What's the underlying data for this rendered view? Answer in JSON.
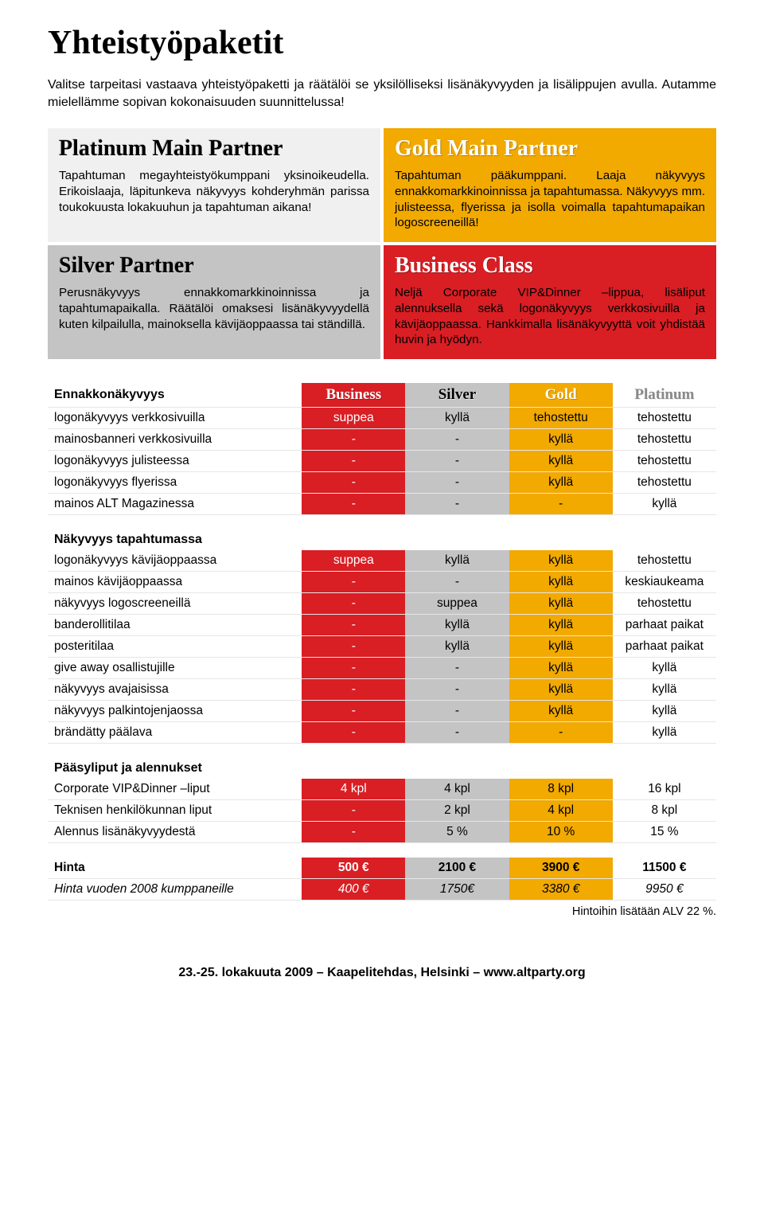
{
  "page": {
    "title": "Yhteistyöpaketit",
    "intro": "Valitse tarpeitasi vastaava yhteistyöpaketti ja räätälöi se yksilölliseksi lisänäkyvyyden ja lisälippujen avulla. Autamme mielellämme sopivan kokonaisuuden suunnittelussa!",
    "footer": "23.-25. lokakuuta 2009 – Kaapelitehdas, Helsinki – www.altparty.org"
  },
  "cards": {
    "platinum": {
      "title": "Platinum Main Partner",
      "body": "Tapahtuman megayhteistyökumppani yksinoikeudella. Erikoislaaja, läpitunkeva näkyvyys kohderyhmän parissa toukokuusta lokakuuhun ja tapahtuman aikana!",
      "bg": "#f0f0f0"
    },
    "gold": {
      "title": "Gold Main Partner",
      "body": "Tapahtuman pääkumppani. Laaja näkyvyys ennakkomarkkinoinnissa ja tapahtumassa. Näkyvyys mm. julisteessa, flyerissa ja isolla voimalla tapahtumapaikan logoscreeneillä!",
      "bg": "#f2a900"
    },
    "silver": {
      "title": "Silver Partner",
      "body": "Perusnäkyvyys ennakkomarkkinoinnissa ja tapahtumapaikalla. Räätälöi omaksesi lisänäkyvyydellä kuten kilpailulla, mainoksella kävijäoppaassa tai ständillä.",
      "bg": "#c4c4c4"
    },
    "business": {
      "title": "Business Class",
      "body": "Neljä Corporate VIP&Dinner –lippua, lisäliput alennuksella sekä logonäkyvyys verkkosivuilla ja kävijäoppaassa. Hankkimalla lisänäkyvyyttä voit yhdistää huvin ja hyödyn.",
      "bg": "#d91e24"
    }
  },
  "colors": {
    "business": "#d91e24",
    "silver": "#c4c4c4",
    "gold": "#f2a900",
    "platinum": "#ffffff"
  },
  "tiers": {
    "biz": "Business",
    "sil": "Silver",
    "gold": "Gold",
    "plat": "Platinum"
  },
  "sections": [
    {
      "heading": "Ennakkonäkyvyys",
      "showTierHeaders": true,
      "rows": [
        {
          "label": "logonäkyvyys verkkosivuilla",
          "biz": "suppea",
          "sil": "kyllä",
          "gold": "tehostettu",
          "plat": "tehostettu"
        },
        {
          "label": "mainosbanneri verkkosivuilla",
          "biz": "-",
          "sil": "-",
          "gold": "kyllä",
          "plat": "tehostettu"
        },
        {
          "label": "logonäkyvyys julisteessa",
          "biz": "-",
          "sil": "-",
          "gold": "kyllä",
          "plat": "tehostettu"
        },
        {
          "label": "logonäkyvyys flyerissa",
          "biz": "-",
          "sil": "-",
          "gold": "kyllä",
          "plat": "tehostettu"
        },
        {
          "label": "mainos ALT Magazinessa",
          "biz": "-",
          "sil": "-",
          "gold": "-",
          "plat": "kyllä"
        }
      ]
    },
    {
      "heading": "Näkyvyys tapahtumassa",
      "showTierHeaders": false,
      "rows": [
        {
          "label": "logonäkyvyys kävijäoppaassa",
          "biz": "suppea",
          "sil": "kyllä",
          "gold": "kyllä",
          "plat": "tehostettu"
        },
        {
          "label": "mainos kävijäoppaassa",
          "biz": "-",
          "sil": "-",
          "gold": "kyllä",
          "plat": "keskiaukeama"
        },
        {
          "label": "näkyvyys logoscreeneillä",
          "biz": "-",
          "sil": "suppea",
          "gold": "kyllä",
          "plat": "tehostettu"
        },
        {
          "label": "banderollitilaa",
          "biz": "-",
          "sil": "kyllä",
          "gold": "kyllä",
          "plat": "parhaat paikat"
        },
        {
          "label": "posteritilaa",
          "biz": "-",
          "sil": "kyllä",
          "gold": "kyllä",
          "plat": "parhaat paikat"
        },
        {
          "label": "give away osallistujille",
          "biz": "-",
          "sil": "-",
          "gold": "kyllä",
          "plat": "kyllä"
        },
        {
          "label": "näkyvyys avajaisissa",
          "biz": "-",
          "sil": "-",
          "gold": "kyllä",
          "plat": "kyllä"
        },
        {
          "label": "näkyvyys palkintojenjaossa",
          "biz": "-",
          "sil": "-",
          "gold": "kyllä",
          "plat": "kyllä"
        },
        {
          "label": "brändätty päälava",
          "biz": "-",
          "sil": "-",
          "gold": "-",
          "plat": "kyllä"
        }
      ]
    },
    {
      "heading": "Pääsyliput ja alennukset",
      "showTierHeaders": false,
      "rows": [
        {
          "label": "Corporate VIP&Dinner –liput",
          "biz": "4 kpl",
          "sil": "4 kpl",
          "gold": "8 kpl",
          "plat": "16 kpl"
        },
        {
          "label": "Teknisen henkilökunnan liput",
          "biz": "-",
          "sil": "2 kpl",
          "gold": "4 kpl",
          "plat": "8 kpl"
        },
        {
          "label": "Alennus lisänäkyvyydestä",
          "biz": "-",
          "sil": "5 %",
          "gold": "10 %",
          "plat": "15 %"
        }
      ]
    },
    {
      "heading": "Hinta",
      "isPriceBlock": true,
      "rows": [
        {
          "label": "Hinta",
          "biz": "500 €",
          "sil": "2100 €",
          "gold": "3900 €",
          "plat": "11500 €",
          "bold": true
        },
        {
          "label": "Hinta vuoden 2008 kumppaneille",
          "biz": "400 €",
          "sil": "1750€",
          "gold": "3380 €",
          "plat": "9950 €",
          "italic": true
        }
      ]
    }
  ],
  "alvNote": "Hintoihin lisätään ALV 22 %."
}
